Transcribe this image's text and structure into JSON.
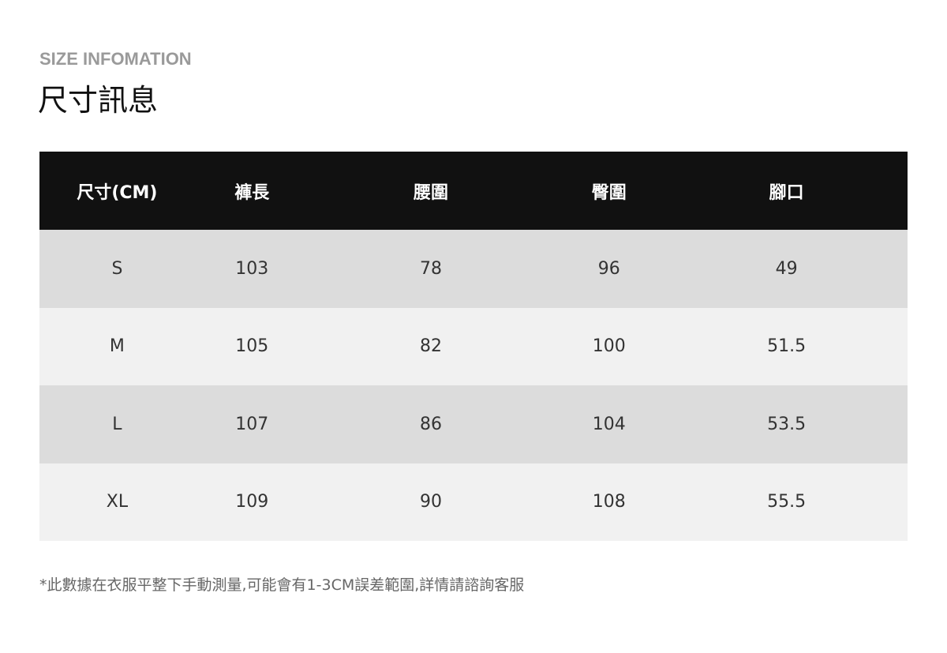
{
  "subtitle": "SIZE INFOMATION",
  "title": "尺寸訊息",
  "table": {
    "headers": [
      "尺寸(CM)",
      "褲長",
      "腰圍",
      "臀圍",
      "腳口"
    ],
    "rows": [
      [
        "S",
        "103",
        "78",
        "96",
        "49"
      ],
      [
        "M",
        "105",
        "82",
        "100",
        "51.5"
      ],
      [
        "L",
        "107",
        "86",
        "104",
        "53.5"
      ],
      [
        "XL",
        "109",
        "90",
        "108",
        "55.5"
      ]
    ]
  },
  "note": "*此數據在衣服平整下手動測量,可能會有1-3CM誤差範圍,詳情請諮詢客服",
  "colors": {
    "header_bg": "#111111",
    "row_dark": "#dcdcdc",
    "row_light": "#f1f1f1"
  }
}
